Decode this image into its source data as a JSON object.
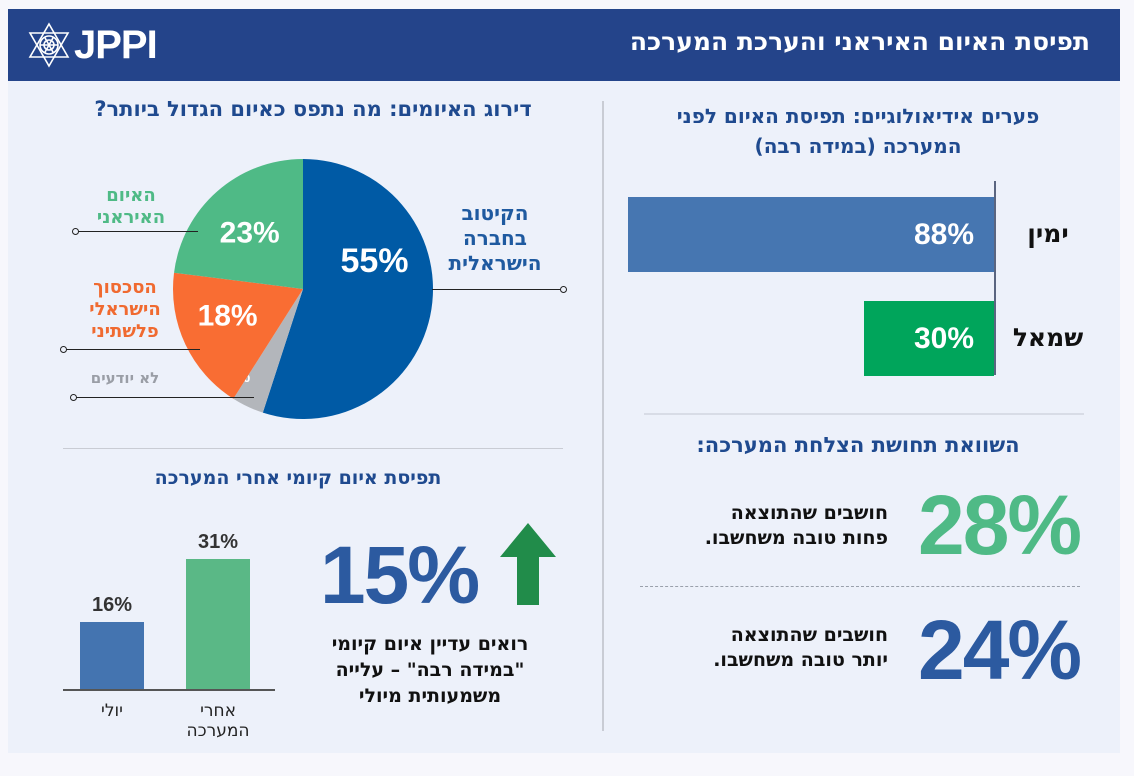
{
  "header": {
    "logo_text": "JPPI",
    "title": "תפיסת האיום האיראני והערכת המערכה"
  },
  "colors": {
    "header_bg": "#24448a",
    "title_blue": "#1f4a8f",
    "bar_right": "#4676b1",
    "bar_left": "#00a55b",
    "pie_blue": "#005aa5",
    "pie_green": "#4fba86",
    "pie_orange": "#f96d33",
    "pie_gray": "#b3b6bb",
    "big_green": "#4fba86",
    "big_blue": "#2c5aa0",
    "arrow_green": "#218c4a",
    "vbar_blue": "#4474b0",
    "vbar_green": "#5ab886"
  },
  "ideology": {
    "title": "פערים אידיאולוגיים: תפיסת האיום לפני המערכה (במידה רבה)"
  },
  "comparison": {
    "title": "השוואת תחושת הצלחת המערכה:",
    "items": [
      {
        "value": "28%",
        "text_line1": "חושבים שהתוצאה",
        "text_line2": "פחות טובה משחשבו."
      },
      {
        "value": "24%",
        "text_line1": "חושבים שהתוצאה",
        "text_line2": "יותר טובה משחשבו."
      }
    ]
  },
  "ranking": {
    "title": "דירוג האיומים: מה נתפס כאיום הגדול ביותר?"
  },
  "existential": {
    "title": "תפיסת איום קיומי אחרי המערכה",
    "big_value": "15%",
    "arrow_icon": "arrow-up",
    "desc_line1": "רואים עדיין איום קיומי",
    "desc_line2": "\"במידה רבה\" – עלייה",
    "desc_line3": "משמעותית מיולי"
  },
  "chart_data": [
    {
      "type": "bar",
      "orientation": "horizontal",
      "title": "פערים אידיאולוגיים: תפיסת האיום לפני המערכה (במידה רבה)",
      "categories": [
        "ימין",
        "שמאל"
      ],
      "values": [
        88,
        30
      ],
      "value_labels": [
        "88%",
        "30%"
      ],
      "unit": "%",
      "xlim": [
        0,
        100
      ]
    },
    {
      "type": "pie",
      "title": "דירוג האיומים: מה נתפס כאיום הגדול ביותר?",
      "slices": [
        {
          "label": "הקיטוב בחברה הישראלית",
          "label_lines": [
            "הקיטוב",
            "בחברה",
            "הישראלית"
          ],
          "value": 55,
          "value_label": "55%",
          "color": "#005aa5"
        },
        {
          "label": "לא יודעים",
          "label_lines": [
            "לא יודעים"
          ],
          "value": 4,
          "value_label": "4%",
          "color": "#b3b6bb"
        },
        {
          "label": "הסכסוך הישראלי פלשתיני",
          "label_lines": [
            "הסכסוך",
            "הישראלי",
            "פלשתיני"
          ],
          "value": 18,
          "value_label": "18%",
          "color": "#f96d33"
        },
        {
          "label": "האיום האיראני",
          "label_lines": [
            "האיום",
            "האיראני"
          ],
          "value": 23,
          "value_label": "23%",
          "color": "#4fba86"
        }
      ],
      "start": "top",
      "direction": "clockwise"
    },
    {
      "type": "bar",
      "orientation": "vertical",
      "title": "תפיסת איום קיומי אחרי המערכה",
      "categories": [
        "יולי",
        "אחרי המערכה"
      ],
      "category_lines": [
        [
          "יולי"
        ],
        [
          "אחרי",
          "המערכה"
        ]
      ],
      "values": [
        16,
        31
      ],
      "value_labels": [
        "16%",
        "31%"
      ],
      "unit": "%",
      "ylim": [
        0,
        40
      ]
    }
  ]
}
